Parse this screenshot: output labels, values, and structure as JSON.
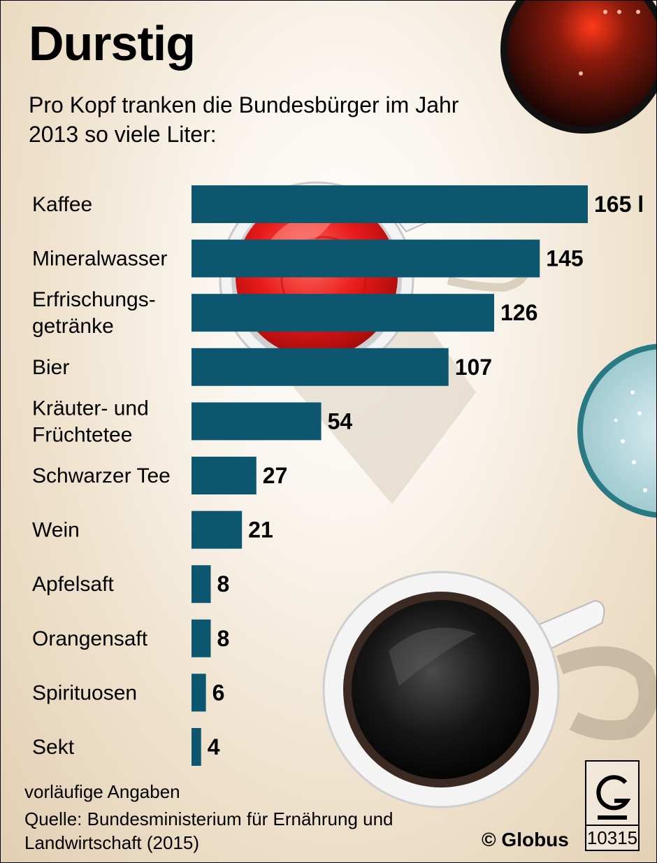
{
  "title": "Durstig",
  "subtitle": "Pro Kopf tranken die Bundesbürger im Jahr 2013 so viele Liter:",
  "footnote": "vorläufige Angaben",
  "source": "Quelle: Bundesministerium für Ernährung und Landwirtschaft (2015)",
  "credit": "© Globus",
  "graphic_number": "10315",
  "colors": {
    "bar": "#0d5670"
  },
  "chart_data": {
    "type": "bar",
    "orientation": "horizontal",
    "title": "Durstig",
    "subtitle": "Pro Kopf tranken die Bundesbürger im Jahr 2013 so viele Liter:",
    "categories": [
      [
        "Kaffee"
      ],
      [
        "Mineralwasser"
      ],
      [
        "Erfrischungs-",
        "getränke"
      ],
      [
        "Bier"
      ],
      [
        "Kräuter- und",
        "Früchtetee"
      ],
      [
        "Schwarzer Tee"
      ],
      [
        "Wein"
      ],
      [
        "Apfelsaft"
      ],
      [
        "Orangensaft"
      ],
      [
        "Spirituosen"
      ],
      [
        "Sekt"
      ]
    ],
    "values": [
      165,
      145,
      126,
      107,
      54,
      27,
      21,
      8,
      8,
      6,
      4
    ],
    "value_labels": [
      "165 l",
      "145",
      "126",
      "107",
      "54",
      "27",
      "21",
      "8",
      "8",
      "6",
      "4"
    ],
    "unit": "l",
    "xlim": [
      0,
      165
    ]
  }
}
